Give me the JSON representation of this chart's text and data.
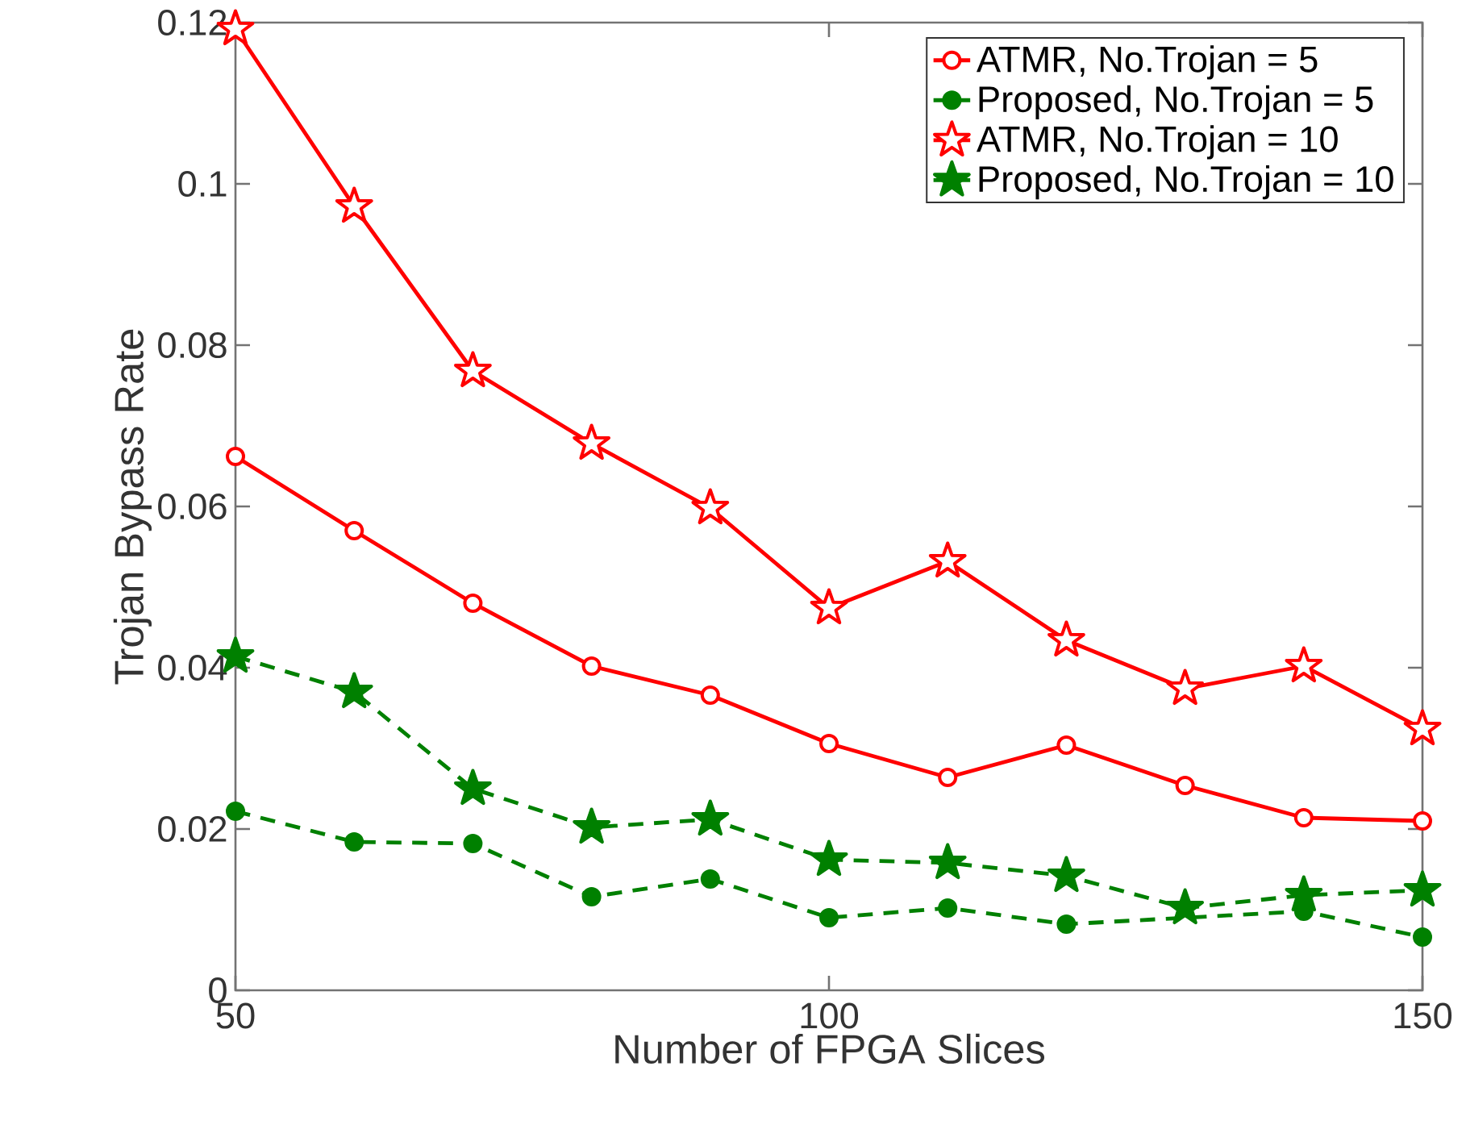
{
  "chart_data": {
    "type": "line",
    "xlabel": "Number of FPGA Slices",
    "ylabel": "Trojan Bypass Rate",
    "x": [
      50,
      60,
      70,
      80,
      90,
      100,
      110,
      120,
      130,
      140,
      150
    ],
    "xlim": [
      50,
      150
    ],
    "xticks": [
      50,
      100,
      150
    ],
    "ylim": [
      0,
      0.12
    ],
    "yticks": [
      0,
      0.02,
      0.04,
      0.06,
      0.08,
      0.1,
      0.12
    ],
    "grid": false,
    "legend": "top right",
    "series": [
      {
        "name": "ATMR, No.Trojan = 5",
        "color": "#ff0000",
        "marker": "circle",
        "line_style": "solid",
        "values": [
          0.0662,
          0.057,
          0.048,
          0.0402,
          0.0366,
          0.0306,
          0.0264,
          0.0304,
          0.0254,
          0.0214,
          0.021
        ]
      },
      {
        "name": "Proposed, No.Trojan = 5",
        "color": "#008000",
        "marker": "circle",
        "line_style": "dashed",
        "values": [
          0.0222,
          0.0184,
          0.0182,
          0.0116,
          0.0138,
          0.009,
          0.0102,
          0.0082,
          null,
          0.0098,
          0.0066
        ]
      },
      {
        "name": "ATMR, No.Trojan = 10",
        "color": "#ff0000",
        "marker": "star",
        "line_style": "solid",
        "values": [
          0.1192,
          0.0972,
          0.0768,
          0.0678,
          0.0598,
          0.0474,
          0.0532,
          0.0434,
          0.0374,
          0.0402,
          0.0324
        ]
      },
      {
        "name": "Proposed, No.Trojan = 10",
        "color": "#008000",
        "marker": "star",
        "line_style": "dashed",
        "values": [
          0.0414,
          0.037,
          0.025,
          0.0202,
          0.0212,
          0.0162,
          0.0158,
          0.0142,
          0.0102,
          0.0118,
          0.0124
        ]
      }
    ]
  }
}
